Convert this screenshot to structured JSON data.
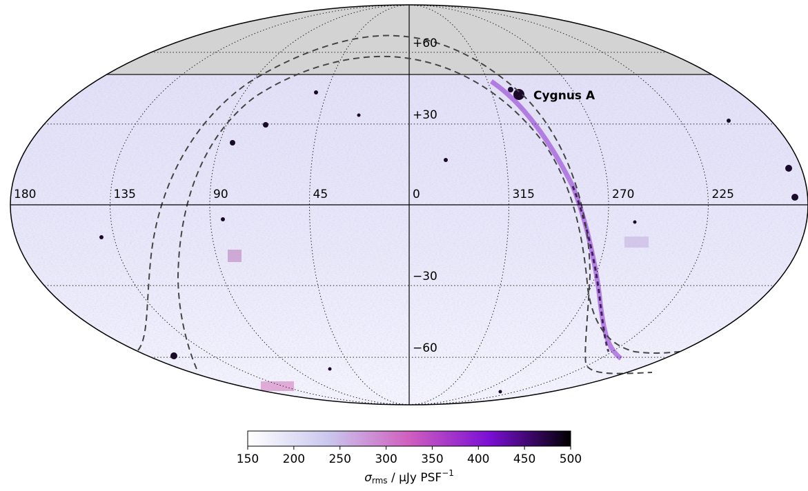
{
  "map": {
    "lon_ticks": [
      180,
      135,
      90,
      45,
      0,
      315,
      270,
      225
    ],
    "lat_ticks": [
      {
        "value": 60,
        "label": "+60"
      },
      {
        "value": 30,
        "label": "+30"
      },
      {
        "value": -30,
        "label": "−30"
      },
      {
        "value": -60,
        "label": "−60"
      }
    ],
    "annotation": "Cygnus A"
  },
  "colorbar": {
    "lim": [
      150,
      500
    ],
    "ticks": [
      150,
      200,
      250,
      300,
      350,
      400,
      450,
      500
    ],
    "colors": [
      "#ffffff",
      "#c9c7ee",
      "#d05fbf",
      "#7a0fd4",
      "#000000"
    ],
    "label": {
      "symbol": "σ",
      "subscript": "rms",
      "unit": " / μJy PSF",
      "superscript": "−1"
    }
  }
}
